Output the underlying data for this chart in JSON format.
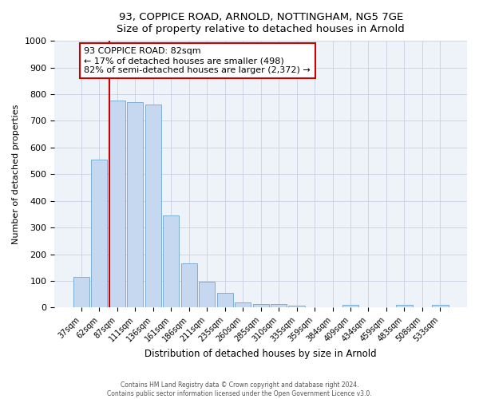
{
  "title1": "93, COPPICE ROAD, ARNOLD, NOTTINGHAM, NG5 7GE",
  "title2": "Size of property relative to detached houses in Arnold",
  "xlabel": "Distribution of detached houses by size in Arnold",
  "ylabel": "Number of detached properties",
  "bar_labels": [
    "37sqm",
    "62sqm",
    "87sqm",
    "111sqm",
    "136sqm",
    "161sqm",
    "186sqm",
    "211sqm",
    "235sqm",
    "260sqm",
    "285sqm",
    "310sqm",
    "335sqm",
    "359sqm",
    "384sqm",
    "409sqm",
    "434sqm",
    "459sqm",
    "483sqm",
    "508sqm",
    "533sqm"
  ],
  "bar_values": [
    115,
    555,
    775,
    770,
    760,
    345,
    165,
    97,
    55,
    20,
    14,
    13,
    8,
    0,
    0,
    10,
    2,
    2,
    10,
    0,
    10
  ],
  "bar_color": "#c5d8f0",
  "bar_edge_color": "#7bafd4",
  "vline_color": "#cc0000",
  "annotation_text": "93 COPPICE ROAD: 82sqm\n← 17% of detached houses are smaller (498)\n82% of semi-detached houses are larger (2,372) →",
  "annotation_box_color": "#ffffff",
  "annotation_box_edge_color": "#cc0000",
  "ylim": [
    0,
    1000
  ],
  "yticks": [
    0,
    100,
    200,
    300,
    400,
    500,
    600,
    700,
    800,
    900,
    1000
  ],
  "footer1": "Contains HM Land Registry data © Crown copyright and database right 2024.",
  "footer2": "Contains public sector information licensed under the Open Government Licence v3.0.",
  "bg_color": "#ffffff",
  "plot_bg_color": "#eef2f9",
  "grid_color": "#c8d0e0"
}
